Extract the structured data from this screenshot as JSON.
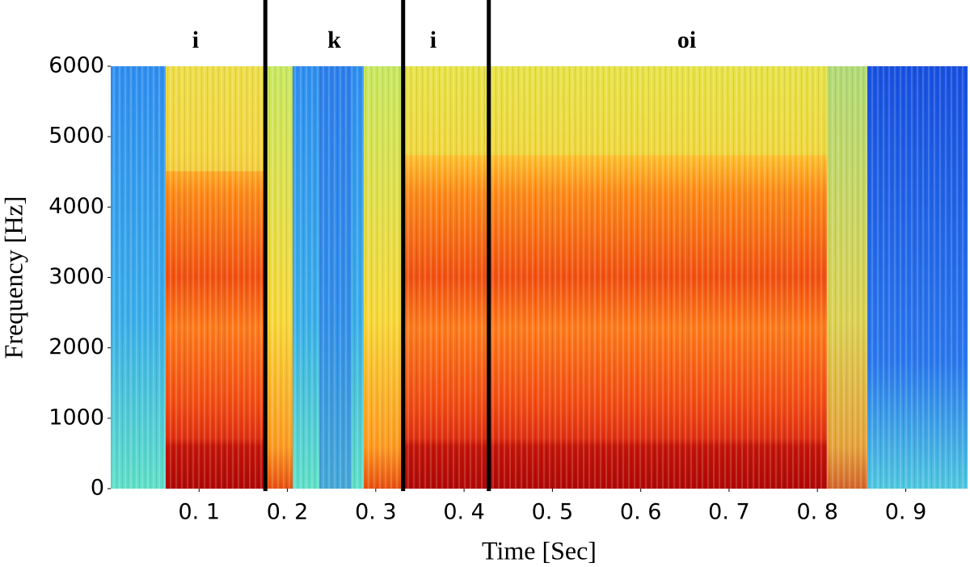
{
  "chart_data": {
    "type": "spectrogram",
    "x_label": "Time [Sec]",
    "y_label": "Frequency [Hz]",
    "xlim": [
      0,
      0.97
    ],
    "ylim": [
      0,
      6000
    ],
    "xticks": [
      {
        "value": 0.1,
        "label": "0. 1"
      },
      {
        "value": 0.2,
        "label": "0. 2"
      },
      {
        "value": 0.3,
        "label": "0. 3"
      },
      {
        "value": 0.4,
        "label": "0. 4"
      },
      {
        "value": 0.5,
        "label": "0. 5"
      },
      {
        "value": 0.6,
        "label": "0. 6"
      },
      {
        "value": 0.7,
        "label": "0. 7"
      },
      {
        "value": 0.8,
        "label": "0. 8"
      },
      {
        "value": 0.9,
        "label": "0. 9"
      }
    ],
    "yticks": [
      0,
      1000,
      2000,
      3000,
      4000,
      5000,
      6000
    ],
    "boundaries": [
      0.175,
      0.331,
      0.428
    ],
    "boundary_color": "#000000",
    "segments": [
      {
        "label": "i",
        "x": 0.096
      },
      {
        "label": "k",
        "x": 0.253
      },
      {
        "label": "i",
        "x": 0.365
      },
      {
        "label": "oi",
        "x": 0.652
      }
    ]
  }
}
